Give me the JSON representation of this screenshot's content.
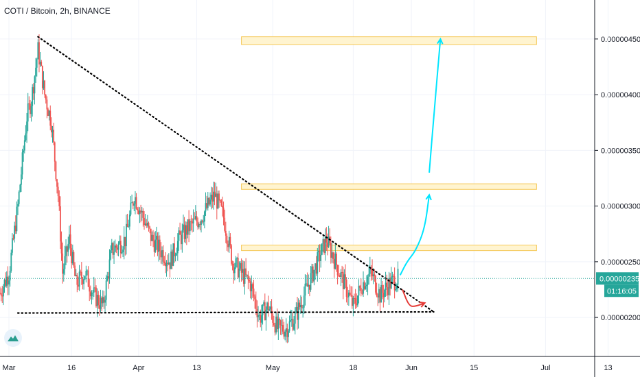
{
  "header": {
    "symbol": "COTI / Bitcoin",
    "interval": "2h",
    "exchange": "BINANCE"
  },
  "price_badge": {
    "price": "0.00000235",
    "countdown": "01:16:05",
    "color": "#26a69a"
  },
  "colors": {
    "up": "#26a69a",
    "down": "#ef5350",
    "zone_fill": "#fff3cc",
    "zone_stroke": "#f5c242",
    "bull_arrow": "#00e5ff",
    "bear_arrow": "#e53935",
    "trendline": "#000000",
    "grid": "#f0f3fa"
  },
  "chart_data": {
    "type": "candlestick",
    "symbol": "COTI / Bitcoin",
    "interval": "2h",
    "exchange": "BINANCE",
    "x_axis": {
      "ticks": [
        "Mar",
        "16",
        "Apr",
        "13",
        "May",
        "18",
        "Jun",
        "15",
        "Jul",
        "13"
      ],
      "range_days": [
        0,
        133
      ]
    },
    "y_axis": {
      "ticks": [
        "0.00000200",
        "0.00000250",
        "0.00000300",
        "0.00000350",
        "0.00000400",
        "0.00000450"
      ],
      "range": [
        1.65e-06,
        4.85e-06
      ],
      "last_price": "0.00000235",
      "countdown": "01:16:05"
    },
    "price_path": [
      {
        "x": 0,
        "y": 2.22e-06
      },
      {
        "x": 2,
        "y": 2.4e-06
      },
      {
        "x": 4,
        "y": 3e-06
      },
      {
        "x": 6,
        "y": 3.8e-06
      },
      {
        "x": 7,
        "y": 3.95e-06
      },
      {
        "x": 8.5,
        "y": 4.4e-06
      },
      {
        "x": 10,
        "y": 4e-06
      },
      {
        "x": 11.5,
        "y": 3.75e-06
      },
      {
        "x": 13,
        "y": 3.1e-06
      },
      {
        "x": 14,
        "y": 2.4e-06
      },
      {
        "x": 15.5,
        "y": 2.7e-06
      },
      {
        "x": 17,
        "y": 2.3e-06
      },
      {
        "x": 19,
        "y": 2.4e-06
      },
      {
        "x": 21,
        "y": 2.2e-06
      },
      {
        "x": 23,
        "y": 2.1e-06
      },
      {
        "x": 25,
        "y": 2.6e-06
      },
      {
        "x": 28,
        "y": 2.7e-06
      },
      {
        "x": 30,
        "y": 3.1e-06
      },
      {
        "x": 32,
        "y": 2.9e-06
      },
      {
        "x": 34,
        "y": 2.7e-06
      },
      {
        "x": 36,
        "y": 2.6e-06
      },
      {
        "x": 38,
        "y": 2.5e-06
      },
      {
        "x": 40,
        "y": 2.7e-06
      },
      {
        "x": 42,
        "y": 2.8e-06
      },
      {
        "x": 45,
        "y": 2.9e-06
      },
      {
        "x": 48,
        "y": 3.1e-06
      },
      {
        "x": 50,
        "y": 2.9e-06
      },
      {
        "x": 52,
        "y": 2.5e-06
      },
      {
        "x": 54,
        "y": 2.4e-06
      },
      {
        "x": 56,
        "y": 2.3e-06
      },
      {
        "x": 58,
        "y": 2e-06
      },
      {
        "x": 60,
        "y": 2.1e-06
      },
      {
        "x": 62,
        "y": 1.9e-06
      },
      {
        "x": 64,
        "y": 1.9e-06
      },
      {
        "x": 66,
        "y": 2e-06
      },
      {
        "x": 68,
        "y": 2.2e-06
      },
      {
        "x": 70,
        "y": 2.4e-06
      },
      {
        "x": 72,
        "y": 2.6e-06
      },
      {
        "x": 73,
        "y": 2.7e-06
      },
      {
        "x": 75,
        "y": 2.5e-06
      },
      {
        "x": 77,
        "y": 2.3e-06
      },
      {
        "x": 79,
        "y": 2.1e-06
      },
      {
        "x": 81,
        "y": 2.3e-06
      },
      {
        "x": 83,
        "y": 2.4e-06
      },
      {
        "x": 85,
        "y": 2.2e-06
      },
      {
        "x": 87,
        "y": 2.3e-06
      },
      {
        "x": 89,
        "y": 2.35e-06
      }
    ],
    "resistance_zones": [
      {
        "low": 4.45e-06,
        "high": 4.52e-06
      },
      {
        "low": 3.15e-06,
        "high": 3.2e-06
      },
      {
        "low": 2.6e-06,
        "high": 2.65e-06
      }
    ],
    "trendlines": [
      {
        "style": "dotted",
        "from": {
          "x": 8.5,
          "y": 4.52e-06
        },
        "to": {
          "x": 97,
          "y": 2.05e-06
        }
      },
      {
        "style": "dotted",
        "from": {
          "x": 4,
          "y": 2.04e-06
        },
        "to": {
          "x": 97,
          "y": 2.05e-06
        }
      }
    ],
    "annotations": [
      {
        "type": "arrow",
        "color": "#00e5ff",
        "path": [
          {
            "x": 89.5,
            "y": 2.38e-06
          },
          {
            "x": 91,
            "y": 2.5e-06
          },
          {
            "x": 93,
            "y": 2.6e-06
          },
          {
            "x": 95,
            "y": 2.8e-06
          },
          {
            "x": 96,
            "y": 3.1e-06
          }
        ]
      },
      {
        "type": "arrow",
        "color": "#00e5ff",
        "path": [
          {
            "x": 96,
            "y": 3.3e-06
          },
          {
            "x": 97,
            "y": 3.8e-06
          },
          {
            "x": 98.5,
            "y": 4.5e-06
          }
        ]
      },
      {
        "type": "arrow",
        "color": "#e53935",
        "path": [
          {
            "x": 90,
            "y": 2.25e-06
          },
          {
            "x": 91.5,
            "y": 2.1e-06
          },
          {
            "x": 93,
            "y": 2.1e-06
          },
          {
            "x": 95,
            "y": 2.13e-06
          }
        ]
      }
    ]
  }
}
